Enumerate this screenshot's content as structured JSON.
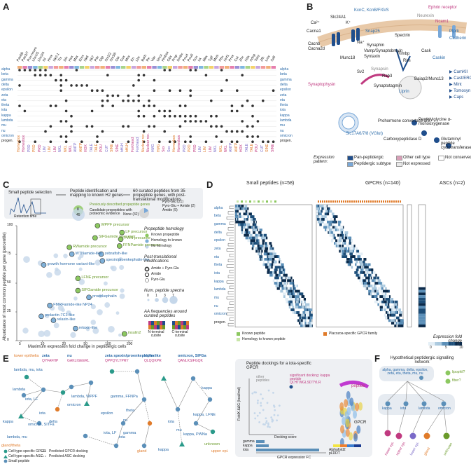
{
  "panels": {
    "A": "A",
    "B": "B",
    "C": "C",
    "D": "D",
    "E": "E",
    "F": "F"
  },
  "panelA": {
    "genes": [
      "Pax6B",
      "Pax3/7",
      "Pox-neuro",
      "Lhx1/5",
      "Lhx3/4",
      "Isl",
      "Hmx",
      "Nk2.1",
      "Tlx",
      "Dlx",
      "Hox",
      "Msx",
      "Emx",
      "Nk6",
      "Nk7",
      "Pitx",
      "Otp",
      "Six1/2",
      "Six3/6",
      "Otx",
      "Gsx",
      "Mnx",
      "En",
      "Lbx",
      "Barh",
      "Rx",
      "Vax",
      "Uncx",
      "Hmbox",
      "Gbx",
      "Prop",
      "Dmbx",
      "Pou4",
      "Pou6",
      "Sox",
      "Irx",
      "Mkx",
      "Tgif",
      "Meis",
      "Pbx",
      "Hnf1",
      "Prox",
      "Cut",
      "Zhx",
      "Hdx",
      "Adnp",
      "Tshz",
      "Zfh",
      "Lmx",
      "Sall"
    ],
    "cell_types": [
      "alpha",
      "beta",
      "gamma",
      "delta",
      "epsilon",
      "zeta",
      "eta",
      "theta",
      "iota",
      "kappa",
      "lambda",
      "mu",
      "nu",
      "omicron",
      "progen."
    ],
    "families": [
      "Homeobox",
      "Homeobox",
      "PRD",
      "PRD",
      "PRD",
      "LIM",
      "LIM",
      "LIM",
      "NKL",
      "NKL",
      "NKL",
      "ANTP",
      "ANTP",
      "HOX",
      "TALE",
      "TALE",
      "POU",
      "CUT",
      "SINE",
      "SINE",
      "bHLH",
      "bHLH",
      "Forkhead",
      "Forkhead",
      "Nuclear rec.",
      "Nuclear rec.",
      "HMG",
      "HMG",
      "Sox",
      "Sox"
    ]
  },
  "panelB": {
    "proteins": [
      "Slc24A1",
      "KcnC, KcnB/F/G/S",
      "Neurexin",
      "Ncam1",
      "Ephrin receptor",
      "Ptprk",
      "Cadherin",
      "Cacna1",
      "Cacnb",
      "Cacna2d",
      "Snap25",
      "Synaphin",
      "Vamp/Synaptobrevin",
      "Syntaxin",
      "Munc18",
      "Spectrin",
      "Rimbp",
      "Rim",
      "Cask",
      "Caskin",
      "Synapsin",
      "Sv2",
      "Rab3",
      "Synaptophysin",
      "Synaptotagmin",
      "Liprin",
      "Baiap2/Munc13",
      "Slc17A6/7/8 (VGlut)",
      "Prohormone convertase 1/3",
      "Carboxypeptidase D",
      "Peptidylglycine α-monooxygenase",
      "Glutaminyl peptide cyclotransferase"
    ],
    "legend_right": [
      "CamKII",
      "Cast/ERC",
      "Mint",
      "Tomosyn",
      "Caps"
    ],
    "ions": [
      "K⁺",
      "Ca²⁺",
      "Na⁺"
    ],
    "expression_title": "Expression pattern:",
    "expression_items": [
      "Pan-peptidergic",
      "Peptidergic subtype",
      "Other cell type",
      "Not expressed",
      "Not conserved"
    ],
    "colors": {
      "pan": "#1f4e8c",
      "subtype": "#79a8d8",
      "other": "#d9a0b8",
      "not_expr": "#e9e9e9",
      "not_conserved": "#ffffff"
    }
  },
  "panelC": {
    "flow": [
      "Small peptide selection",
      "Peptide identification and mapping to known H2 genes",
      "60 curated peptides from 35 propeptide genes, with post-translational modifications"
    ],
    "inset_x": "Retention time",
    "inset_y": "Abundance",
    "venn": {
      "a": "8",
      "b": "45",
      "a_label": "Previously described propeptide genes",
      "b_label": "Candidate propeptides with proteomic evidence"
    },
    "ptm_pie": [
      "Pyro-Glu (21)",
      "Pyro-Glu + Amide (2)",
      "Amide (5)",
      "None (32)"
    ],
    "xlabel": "Maximum expression fold change in peptidergic cells",
    "ylabel": "Abundance of most common peptide per gene (percentile)",
    "legend": {
      "homology_title": "Propeptide homology",
      "homology": [
        "Known propeptide",
        "Homology to known",
        "No homology"
      ],
      "ptm_title": "Post-translational modifications",
      "ptm": [
        "Amide + Pyro-Glu",
        "Amide",
        "Pyro-Glu"
      ],
      "spectra_title": "Num. peptide spectra",
      "spectra": [
        "0",
        "1",
        "3",
        "7"
      ],
      "aa_title": "AA frequencies around curated peptides",
      "aa": [
        "N-terminal cutsite",
        "C-terminal cutsite"
      ]
    },
    "points": [
      {
        "label": "SIFGamide precursor",
        "c": "#8cc860"
      },
      {
        "label": "WPPF precursor",
        "c": "#8cc860"
      },
      {
        "label": "LF precursor",
        "c": "#8cc860"
      },
      {
        "label": "PWN precursor",
        "c": "#8cc860"
      },
      {
        "label": "FFNPamide precursor",
        "c": "#8cc860"
      },
      {
        "label": "RWamide precursor",
        "c": "#8cc860"
      },
      {
        "label": "WTNamide-like",
        "c": "#7fb0d8"
      },
      {
        "label": "zebrafish-like",
        "c": "#7fb0d8"
      },
      {
        "label": "spexin/proenkephalin-like",
        "c": "#7fb0d8"
      },
      {
        "label": "growth hormone variant-like",
        "c": "#7fb0d8"
      },
      {
        "label": "LFNE precursor",
        "c": "#8cc860"
      },
      {
        "label": "SIFGamide precursor",
        "c": "#8cc860"
      },
      {
        "label": "proenkephalin",
        "c": "#7fb0d8"
      },
      {
        "label": "FMRFamide-like NP24",
        "c": "#7fb0d8"
      },
      {
        "label": "prolactin-7C1-like",
        "c": "#7fb0d8"
      },
      {
        "label": "relaxin-like",
        "c": "#7fb0d8"
      },
      {
        "label": "relaxin-like",
        "c": "#7fb0d8"
      },
      {
        "label": "insulin2",
        "c": "#8cc860"
      }
    ],
    "xticks": [
      "5",
      "10",
      "20",
      "50",
      "100",
      "200"
    ],
    "yticks": [
      "0",
      "25",
      "50",
      "75",
      "100"
    ]
  },
  "panelD": {
    "groups": [
      "Small peptides (n=58)",
      "GPCRs (n=140)",
      "ASCs (n=2)"
    ],
    "row_labels": [
      "alpha",
      "beta",
      "gamma",
      "delta",
      "epsilon",
      "zeta",
      "eta",
      "theta",
      "iota",
      "kappa",
      "lambda",
      "mu",
      "nu",
      "omicron",
      "progen."
    ],
    "legend": [
      "Known peptide",
      "Homology to known peptide",
      "Placozoa-specific GPCR family"
    ],
    "scale_title": "Expression fold change",
    "scale_ticks": [
      "0",
      "5",
      "10"
    ]
  },
  "panelE": {
    "networks": [
      {
        "title": "zeta",
        "seq": "QYFAFHP"
      },
      {
        "title": "nu",
        "seq": "GAKLIGEERL"
      },
      {
        "title": "zeta spexin/proenkephalin-like",
        "seq": "QPPQYLYPRY"
      },
      {
        "title": "alpha",
        "seq": "QLQQKPR"
      },
      {
        "title": "omicron, SIFGa",
        "seq": "QANLKSIFGQK"
      }
    ],
    "labels": [
      "tower epithelia",
      "lambda, mu, iota",
      "lambda",
      "iota, LF",
      "iota",
      "omicron",
      "omicron, SITFa",
      "kappa",
      "delta",
      "lambda, WPPF",
      "lambda, mu",
      "gland/theta",
      "gamma",
      "iota",
      "epsilon",
      "theta",
      "nu",
      "iota",
      "mu",
      "kappa",
      "unknown",
      "upper epi.",
      "gland",
      "kappa, LFNE",
      "kappa",
      "gamma, FFNPa",
      "iota, LF",
      "kappa, PWNa"
    ],
    "legend": [
      "Cell type-specific GPCR",
      "Cell type-specific ASC",
      "Small peptide",
      "Predicted GPCR docking",
      "Predicted ASC docking"
    ],
    "dock_title": "Peptide dockings for a iota-specific GPCR",
    "dock_x": "Docking score",
    "dock_y": "FoldX ΔΔG (kcal/mol)",
    "dock_note": "significant docking: kappa peptide QLHTWGLSDTYLR",
    "other": "other peptides",
    "bar_x": "GPCR expression FC",
    "bars": [
      {
        "name": "gamma",
        "v": 2
      },
      {
        "name": "kappa",
        "v": 3
      },
      {
        "name": "iota",
        "v": 15
      }
    ],
    "struct": {
      "peptide": "peptide",
      "gpcr": "GPCR",
      "scale": "Alphafold2 pLDDT",
      "ticks": [
        "0",
        "5",
        "10"
      ]
    }
  },
  "panelF": {
    "title": "Hypothetical peptidergic signalling network",
    "top": "alpha, gamma, delta, epsilon, zeta, eta, theta, mu, nu",
    "mid": [
      "kappa",
      "iota",
      "lambda",
      "omicron"
    ],
    "side": [
      "lipophil?",
      "fiber?"
    ],
    "bottom": [
      "tower epi.",
      "upper epi.",
      "lower epi.",
      "gland",
      "unknown"
    ]
  }
}
